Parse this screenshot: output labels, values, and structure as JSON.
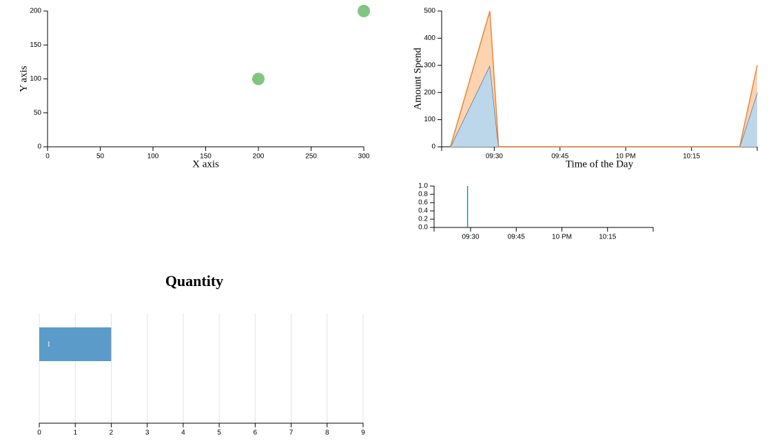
{
  "chart_data": [
    {
      "type": "scatter",
      "x_label": "X axis",
      "y_label": "Y axis",
      "x": [
        200,
        300
      ],
      "values": [
        100,
        200
      ],
      "color": "#80c680",
      "xlim": [
        0,
        300
      ],
      "xticks": [
        0,
        50,
        100,
        150,
        200,
        250,
        300
      ],
      "ylim": [
        0,
        200
      ],
      "yticks": [
        0,
        50,
        100,
        150,
        200
      ]
    },
    {
      "type": "area",
      "stacked": true,
      "x_label": "Time of the Day",
      "y_label": "Amount Spend",
      "x": [
        560,
        569,
        571,
        626,
        630
      ],
      "series": [
        {
          "color": "#bdd7ea",
          "line_color": "#5a7390",
          "values": [
            0,
            300,
            0,
            0,
            200
          ]
        },
        {
          "color": "#fdd3b0",
          "line_color": "#e8863a",
          "values": [
            0,
            200,
            0,
            0,
            100
          ]
        }
      ],
      "xlim": [
        558,
        630
      ],
      "xticks": [
        {
          "value": 570,
          "label": "09:30"
        },
        {
          "value": 585,
          "label": "09:45"
        },
        {
          "value": 600,
          "label": "10 PM"
        },
        {
          "value": 615,
          "label": "10:15"
        }
      ],
      "ylim": [
        0,
        500
      ],
      "yticks": [
        0,
        100,
        200,
        300,
        400,
        500
      ]
    },
    {
      "type": "spike",
      "x": [
        569
      ],
      "values": [
        1
      ],
      "color": "#2a7a6a",
      "xlim": [
        558,
        630
      ],
      "xticks": [
        {
          "value": 570,
          "label": "09:30"
        },
        {
          "value": 585,
          "label": "09:45"
        },
        {
          "value": 600,
          "label": "10 PM"
        },
        {
          "value": 615,
          "label": "10:15"
        }
      ],
      "ylim": [
        0,
        1
      ],
      "yticks": [
        {
          "value": 0,
          "label": "0.0"
        },
        0.2,
        0.4,
        0.6,
        0.8,
        {
          "value": 1,
          "label": "1.0"
        }
      ]
    },
    {
      "type": "hbar",
      "title": "Quantity",
      "categories": [
        "1"
      ],
      "values": [
        2
      ],
      "color": "#5b9bc9",
      "xlim": [
        0,
        9
      ],
      "xticks": [
        0,
        1,
        2,
        3,
        4,
        5,
        6,
        7,
        8,
        9
      ],
      "grid": true
    }
  ]
}
